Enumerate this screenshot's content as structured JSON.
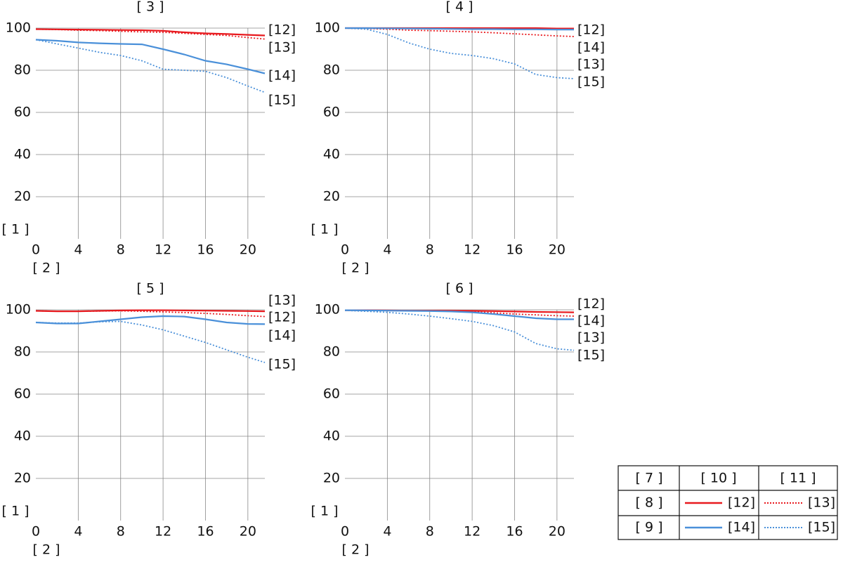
{
  "chart_data": [
    {
      "type": "line",
      "title": "[ 3 ]",
      "xlabel": "[ 2 ]",
      "ylabel": "[ 1 ]",
      "x": [
        0,
        2,
        4,
        6,
        8,
        10,
        12,
        14,
        16,
        18,
        20,
        21.6
      ],
      "xlim": [
        0,
        21.6
      ],
      "xticks": [
        0,
        4,
        8,
        12,
        16,
        20
      ],
      "ylim": [
        0,
        100
      ],
      "yticks": [
        20,
        40,
        60,
        80,
        100
      ],
      "grid": true,
      "series": [
        {
          "color": "#e8191e",
          "style": "solid",
          "values": [
            99.5,
            99.4,
            99.3,
            99.2,
            99.1,
            99,
            98.7,
            98,
            97.5,
            97.2,
            96.8,
            96.5
          ]
        },
        {
          "color": "#e8191e",
          "style": "dotted",
          "values": [
            99.5,
            99.3,
            99,
            98.8,
            98.5,
            98.2,
            98,
            97.5,
            97,
            96.5,
            95.5,
            94.8
          ]
        },
        {
          "color": "#4a90d9",
          "style": "solid",
          "values": [
            94.5,
            94,
            93.2,
            92.8,
            92.5,
            92.3,
            90,
            87.5,
            84.5,
            82.8,
            80.5,
            78.5
          ]
        },
        {
          "color": "#4a90d9",
          "style": "dotted",
          "values": [
            94.5,
            92.5,
            90.5,
            88.5,
            87,
            84.5,
            80.5,
            80,
            79.5,
            76.5,
            72.5,
            69.5
          ]
        }
      ],
      "end_labels": [
        "[12]",
        "[13]",
        "[14]",
        "[15]"
      ]
    },
    {
      "type": "line",
      "title": "[ 4 ]",
      "xlabel": "[ 2 ]",
      "ylabel": "[ 1 ]",
      "x": [
        0,
        2,
        4,
        6,
        8,
        10,
        12,
        14,
        16,
        18,
        20,
        21.6
      ],
      "xlim": [
        0,
        21.6
      ],
      "xticks": [
        0,
        4,
        8,
        12,
        16,
        20
      ],
      "ylim": [
        0,
        100
      ],
      "yticks": [
        20,
        40,
        60,
        80,
        100
      ],
      "grid": true,
      "series": [
        {
          "color": "#e8191e",
          "style": "solid",
          "values": [
            100,
            100,
            100,
            100,
            100,
            100,
            100,
            100,
            100,
            100,
            99.8,
            99.8
          ]
        },
        {
          "color": "#e8191e",
          "style": "dotted",
          "values": [
            100,
            99.8,
            99.5,
            99,
            98.8,
            98.5,
            98.2,
            97.8,
            97.3,
            96.8,
            96.3,
            96
          ]
        },
        {
          "color": "#4a90d9",
          "style": "solid",
          "values": [
            100,
            100,
            99.9,
            99.8,
            99.7,
            99.6,
            99.5,
            99.5,
            99.4,
            99.4,
            99.3,
            99.3
          ]
        },
        {
          "color": "#4a90d9",
          "style": "dotted",
          "values": [
            100,
            99.5,
            97,
            93,
            90,
            88,
            87,
            85.5,
            83,
            78,
            76.5,
            76
          ]
        }
      ],
      "end_labels": [
        "[12]",
        "[14]",
        "[13]",
        "[15]"
      ]
    },
    {
      "type": "line",
      "title": "[ 5 ]",
      "xlabel": "[ 2 ]",
      "ylabel": "[ 1 ]",
      "x": [
        0,
        2,
        4,
        6,
        8,
        10,
        12,
        14,
        16,
        18,
        20,
        21.6
      ],
      "xlim": [
        0,
        21.6
      ],
      "xticks": [
        0,
        4,
        8,
        12,
        16,
        20
      ],
      "ylim": [
        0,
        100
      ],
      "yticks": [
        20,
        40,
        60,
        80,
        100
      ],
      "grid": true,
      "series": [
        {
          "color": "#e8191e",
          "style": "solid",
          "values": [
            99.5,
            99.3,
            99.3,
            99.5,
            99.7,
            99.8,
            99.8,
            99.7,
            99.6,
            99.5,
            99.4,
            99.3
          ]
        },
        {
          "color": "#e8191e",
          "style": "dotted",
          "values": [
            99.5,
            99.3,
            99.3,
            99.4,
            99.5,
            99.3,
            99,
            98.7,
            98.3,
            97.8,
            97.2,
            96.8
          ]
        },
        {
          "color": "#4a90d9",
          "style": "solid",
          "values": [
            94,
            93.5,
            93.5,
            94.5,
            95.5,
            96.5,
            97,
            96.8,
            95.5,
            94,
            93.3,
            93.2
          ]
        },
        {
          "color": "#4a90d9",
          "style": "dotted",
          "values": [
            94,
            93.7,
            93.7,
            94.3,
            94.5,
            92.8,
            90.5,
            87.5,
            84.5,
            81,
            77.5,
            75
          ]
        }
      ],
      "end_labels": [
        "[13]",
        "[12]",
        "[14]",
        "[15]"
      ]
    },
    {
      "type": "line",
      "title": "[ 6 ]",
      "xlabel": "[ 2 ]",
      "ylabel": "[ 1 ]",
      "x": [
        0,
        2,
        4,
        6,
        8,
        10,
        12,
        14,
        16,
        18,
        20,
        21.6
      ],
      "xlim": [
        0,
        21.6
      ],
      "xticks": [
        0,
        4,
        8,
        12,
        16,
        20
      ],
      "ylim": [
        0,
        100
      ],
      "yticks": [
        20,
        40,
        60,
        80,
        100
      ],
      "grid": true,
      "series": [
        {
          "color": "#e8191e",
          "style": "solid",
          "values": [
            99.8,
            99.8,
            99.7,
            99.6,
            99.6,
            99.6,
            99.5,
            99.4,
            99.2,
            99,
            98.9,
            98.8
          ]
        },
        {
          "color": "#e8191e",
          "style": "dotted",
          "values": [
            99.8,
            99.7,
            99.6,
            99.5,
            99.5,
            99.3,
            99,
            98.6,
            98,
            97.6,
            97.2,
            97
          ]
        },
        {
          "color": "#4a90d9",
          "style": "solid",
          "values": [
            99.8,
            99.7,
            99.6,
            99.5,
            99.4,
            99.2,
            98.8,
            98,
            97,
            96,
            95.5,
            95.5
          ]
        },
        {
          "color": "#4a90d9",
          "style": "dotted",
          "values": [
            99.7,
            99.3,
            98.8,
            98,
            97,
            95.8,
            94.5,
            92.5,
            89.5,
            84,
            81.5,
            80.8
          ]
        }
      ],
      "end_labels": [
        "[12]",
        "[14]",
        "[13]",
        "[15]"
      ]
    }
  ],
  "legend_table": {
    "header": [
      "[ 7 ]",
      "[ 10 ]",
      "[ 11 ]"
    ],
    "rows": [
      [
        "[ 8 ]",
        "[12]",
        "[13]"
      ],
      [
        "[ 9 ]",
        "[14]",
        "[15]"
      ]
    ]
  }
}
